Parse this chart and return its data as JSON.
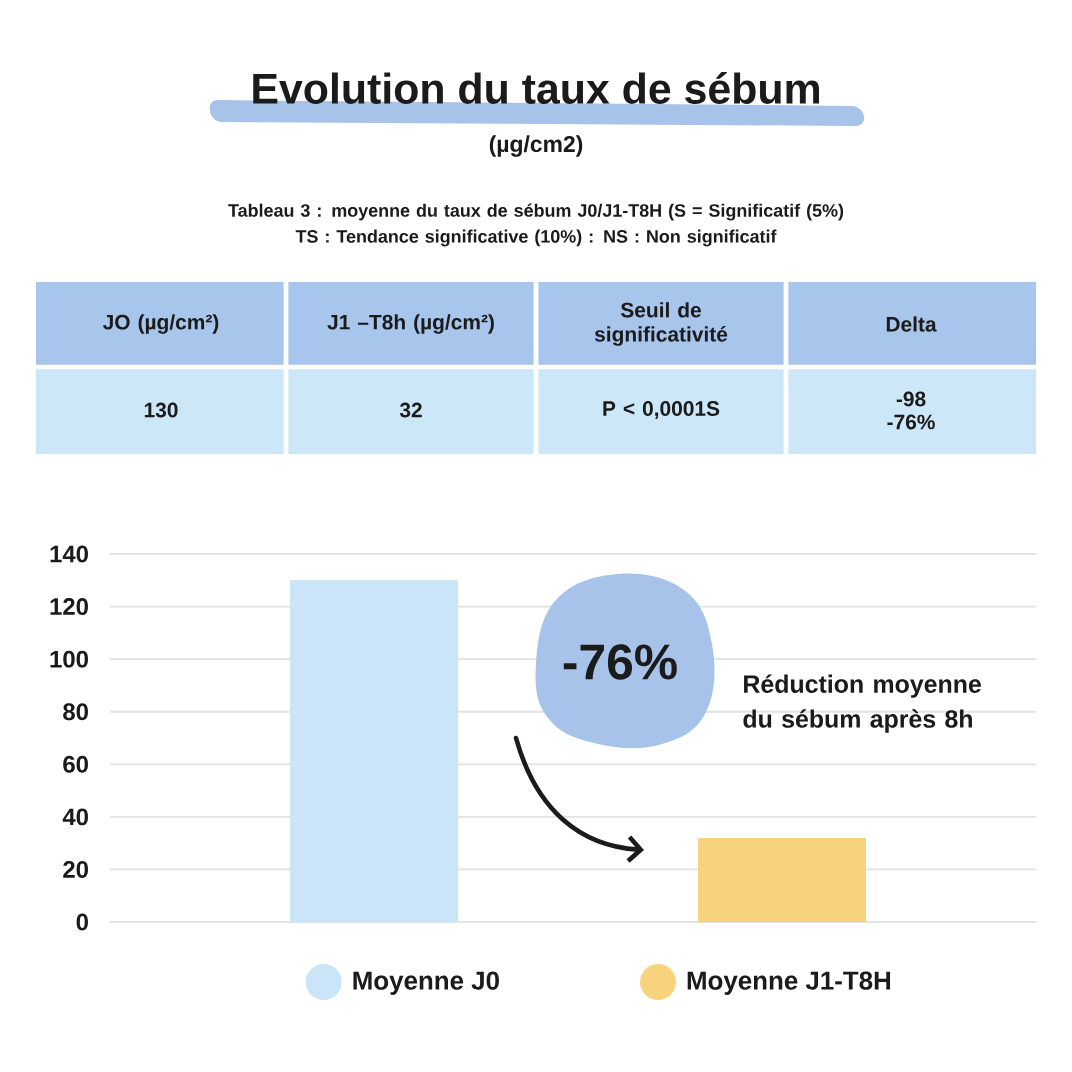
{
  "chart_data": {
    "type": "bar",
    "title": "Evolution du taux de sébum",
    "subtitle": "(µg/cm2)",
    "categories": [
      null,
      null
    ],
    "series": [
      {
        "name": "Moyenne J0",
        "color": "#c9e5f7",
        "values": [
          130,
          null
        ]
      },
      {
        "name": "Moyenne J1-T8H",
        "color": "#f8d37d",
        "values": [
          null,
          32
        ]
      }
    ],
    "ylim": [
      0,
      140
    ],
    "yticks": [
      0,
      20,
      40,
      60,
      80,
      100,
      120,
      140
    ],
    "grid": "y",
    "legend": "bottom",
    "annotations": [
      "Tableau 3 : moyenne du taux de sébum J0/J1-T8H (S = Significatif (5%)",
      "TS : Tendance significative (10%) : NS : Non significatif",
      "JO (µg/cm²)",
      "J1 –T8h (µg/cm²)",
      "Seuil de significativité",
      "Delta",
      "130",
      "32",
      "P < 0,0001S",
      "-98",
      "-76%",
      "-76%",
      "Réduction moyenne du sébum après 8h"
    ]
  }
}
